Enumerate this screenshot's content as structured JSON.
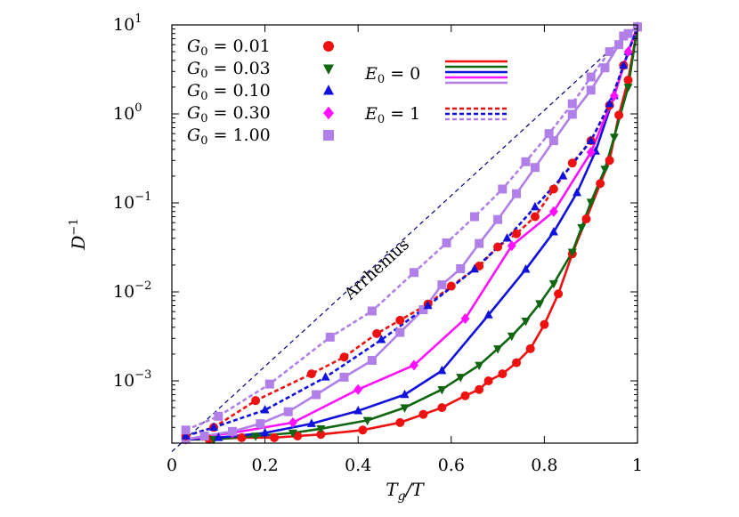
{
  "chart_data": {
    "type": "line",
    "xlabel": "Tg/T",
    "ylabel": "D⁻¹",
    "xlim": [
      0,
      1
    ],
    "ylim_log10": [
      -3.7,
      1.0
    ],
    "yscale": "log",
    "grid": false,
    "x_ticks": [
      "0",
      "0.2",
      "0.4",
      "0.6",
      "0.8",
      "1"
    ],
    "y_ticks": [
      {
        "base": "10",
        "exp": "−3"
      },
      {
        "base": "10",
        "exp": "−2"
      },
      {
        "base": "10",
        "exp": "−1"
      },
      {
        "base": "10",
        "exp": "0"
      },
      {
        "base": "10",
        "exp": "1"
      }
    ],
    "legend_placement": "top-left",
    "marker_legend": [
      {
        "label": "G0 = 0.01",
        "color": "#ee1111",
        "marker": "circle"
      },
      {
        "label": "G0 = 0.03",
        "color": "#116611",
        "marker": "triangle-down"
      },
      {
        "label": "G0 = 0.10",
        "color": "#1111dd",
        "marker": "triangle-up"
      },
      {
        "label": "G0 = 0.30",
        "color": "#ff11ff",
        "marker": "diamond"
      },
      {
        "label": "G0 = 1.00",
        "color": "#b080e8",
        "marker": "square"
      }
    ],
    "line_legend": [
      {
        "label": "E0 = 0",
        "style": "solid",
        "colors": [
          "#ee1111",
          "#116611",
          "#1111dd",
          "#ff11ff",
          "#b080e8"
        ]
      },
      {
        "label": "E0 = 1",
        "style": "dashed",
        "colors": [
          "#ee1111",
          "#1111dd",
          "#b080e8"
        ]
      }
    ],
    "annotation": "Arrhenius",
    "arrhenius": {
      "style": "dashed",
      "color": "#000080",
      "x": [
        0,
        1
      ],
      "y": [
        0.00016,
        10
      ]
    },
    "series": [
      {
        "name": "G0 = 0.01",
        "E0": 0,
        "style": "solid",
        "color": "#ee1111",
        "marker": "circle",
        "x": [
          0.03,
          0.08,
          0.15,
          0.22,
          0.27,
          0.32,
          0.41,
          0.49,
          0.54,
          0.58,
          0.63,
          0.66,
          0.68,
          0.71,
          0.74,
          0.77,
          0.8,
          0.83,
          0.86,
          0.89,
          0.92,
          0.94,
          0.96,
          0.98,
          1.0
        ],
        "y": [
          0.00022,
          0.00022,
          0.00023,
          0.00023,
          0.00024,
          0.00025,
          0.00028,
          0.00034,
          0.00042,
          0.0005,
          0.00068,
          0.0008,
          0.001,
          0.0012,
          0.0016,
          0.0023,
          0.0043,
          0.0095,
          0.0268,
          0.066,
          0.165,
          0.3,
          0.97,
          2.4,
          9.5
        ]
      },
      {
        "name": "G0 = 0.03",
        "E0": 0,
        "style": "solid",
        "color": "#116611",
        "marker": "triangle-down",
        "x": [
          0.03,
          0.09,
          0.18,
          0.26,
          0.32,
          0.42,
          0.5,
          0.58,
          0.62,
          0.66,
          0.7,
          0.73,
          0.76,
          0.79,
          0.82,
          0.86,
          0.88,
          0.9,
          0.93,
          0.95,
          0.98,
          1.0
        ],
        "y": [
          0.00022,
          0.00022,
          0.00024,
          0.00026,
          0.00029,
          0.00036,
          0.0005,
          0.0008,
          0.0011,
          0.0015,
          0.0023,
          0.0032,
          0.0047,
          0.0074,
          0.0124,
          0.028,
          0.053,
          0.102,
          0.24,
          0.55,
          2.0,
          9.5
        ]
      },
      {
        "name": "G0 = 0.10",
        "E0": 0,
        "style": "solid",
        "color": "#1111dd",
        "marker": "triangle-up",
        "x": [
          0.03,
          0.1,
          0.2,
          0.3,
          0.4,
          0.5,
          0.58,
          0.68,
          0.76,
          0.82,
          0.87,
          0.91,
          0.95,
          0.98,
          1.0
        ],
        "y": [
          0.00022,
          0.00023,
          0.00026,
          0.00033,
          0.00046,
          0.0007,
          0.0013,
          0.0055,
          0.0179,
          0.047,
          0.13,
          0.38,
          1.6,
          5.0,
          9.5
        ]
      },
      {
        "name": "G0 = 0.30",
        "E0": 0,
        "style": "solid",
        "color": "#ff11ff",
        "marker": "diamond",
        "x": [
          0.03,
          0.13,
          0.26,
          0.4,
          0.52,
          0.63,
          0.73,
          0.82,
          0.9,
          0.95,
          0.98,
          1.0
        ],
        "y": [
          0.00022,
          0.00026,
          0.00034,
          0.0008,
          0.0015,
          0.005,
          0.033,
          0.08,
          0.37,
          1.6,
          5.0,
          9.5
        ]
      },
      {
        "name": "G0 = 1.00",
        "E0": 0,
        "style": "solid",
        "color": "#b080e8",
        "marker": "square",
        "x": [
          0.03,
          0.07,
          0.13,
          0.19,
          0.25,
          0.31,
          0.37,
          0.43,
          0.49,
          0.54,
          0.58,
          0.62,
          0.66,
          0.7,
          0.74,
          0.78,
          0.82,
          0.86,
          0.9,
          0.93,
          0.96,
          0.98,
          1.0
        ],
        "y": [
          0.00022,
          0.00024,
          0.00027,
          0.00033,
          0.00045,
          0.0007,
          0.0011,
          0.0017,
          0.0035,
          0.0063,
          0.012,
          0.0182,
          0.035,
          0.065,
          0.127,
          0.25,
          0.5,
          0.99,
          1.85,
          3.3,
          6.0,
          8.0,
          9.5
        ]
      },
      {
        "name": "G0 = 0.01",
        "E0": 1,
        "style": "dashed",
        "color": "#ee1111",
        "marker": "circle",
        "x": [
          0.03,
          0.09,
          0.18,
          0.3,
          0.37,
          0.44,
          0.49,
          0.55,
          0.6,
          0.66,
          0.7,
          0.74,
          0.78,
          0.82,
          0.86,
          0.9,
          0.94,
          0.97,
          1.0
        ],
        "y": [
          0.00024,
          0.0003,
          0.0006,
          0.0012,
          0.00185,
          0.0034,
          0.0048,
          0.0073,
          0.0116,
          0.0195,
          0.032,
          0.045,
          0.07,
          0.143,
          0.28,
          0.5,
          1.25,
          3.5,
          9.5
        ]
      },
      {
        "name": "G0 = 0.10",
        "E0": 1,
        "style": "dashed",
        "color": "#1111dd",
        "marker": "triangle-up",
        "x": [
          0.03,
          0.09,
          0.2,
          0.33,
          0.45,
          0.55,
          0.65,
          0.72,
          0.78,
          0.84,
          0.9,
          0.94,
          0.97,
          1.0
        ],
        "y": [
          0.00024,
          0.0003,
          0.00047,
          0.0011,
          0.0029,
          0.007,
          0.018,
          0.04,
          0.09,
          0.2,
          0.5,
          1.3,
          3.5,
          9.5
        ]
      },
      {
        "name": "G0 = 1.00",
        "E0": 1,
        "style": "dashed",
        "color": "#b080e8",
        "marker": "square",
        "x": [
          0.03,
          0.1,
          0.21,
          0.34,
          0.43,
          0.52,
          0.59,
          0.65,
          0.71,
          0.76,
          0.81,
          0.86,
          0.9,
          0.94,
          0.97,
          1.0
        ],
        "y": [
          0.00028,
          0.0004,
          0.00092,
          0.0031,
          0.0061,
          0.0165,
          0.0355,
          0.07,
          0.143,
          0.29,
          0.6,
          1.3,
          2.6,
          5.0,
          7.5,
          9.5
        ]
      }
    ]
  }
}
